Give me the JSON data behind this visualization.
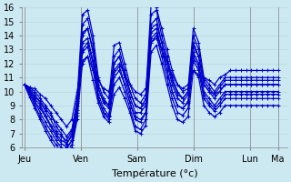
{
  "xlabel": "Température (°c)",
  "bg_color": "#cce8f0",
  "plot_bg_color": "#cce8f0",
  "line_color": "#0000cc",
  "marker": "+",
  "ylim": [
    6,
    16
  ],
  "yticks": [
    6,
    7,
    8,
    9,
    10,
    11,
    12,
    13,
    14,
    15,
    16
  ],
  "day_labels": [
    "Jeu",
    "Ven",
    "Sam",
    "Dim",
    "Lun",
    "Ma"
  ],
  "day_positions": [
    0,
    24,
    48,
    72,
    96,
    108
  ],
  "series": [
    [
      10.5,
      10.3,
      10.0,
      9.5,
      9.0,
      8.5,
      7.5,
      7.0,
      6.2,
      7.0,
      9.5,
      15.5,
      15.8,
      14.0,
      11.0,
      10.0,
      9.5,
      13.3,
      13.5,
      12.0,
      10.5,
      9.5,
      9.2,
      9.8,
      16.2,
      16.0,
      14.5,
      13.0,
      11.5,
      10.5,
      10.0,
      10.2,
      14.5,
      13.5,
      11.0,
      10.5,
      10.0,
      10.5,
      11.0,
      11.0,
      11.0,
      11.0,
      11.0,
      11.0,
      11.0,
      11.0,
      11.0,
      11.0,
      11.0
    ],
    [
      10.5,
      10.2,
      9.8,
      9.2,
      8.6,
      8.0,
      7.2,
      6.8,
      6.5,
      7.2,
      9.2,
      14.8,
      15.2,
      13.5,
      10.5,
      9.5,
      9.0,
      12.5,
      13.0,
      11.5,
      10.0,
      9.0,
      8.8,
      9.5,
      15.5,
      15.8,
      14.0,
      12.5,
      11.0,
      10.0,
      9.5,
      10.0,
      14.0,
      13.0,
      10.8,
      10.2,
      9.8,
      10.3,
      10.8,
      10.8,
      10.8,
      10.8,
      10.8,
      10.8,
      10.8,
      10.8,
      10.8,
      10.8,
      10.8
    ],
    [
      10.5,
      10.1,
      9.5,
      9.0,
      8.3,
      7.6,
      7.0,
      6.5,
      6.3,
      6.8,
      9.0,
      14.2,
      14.5,
      13.0,
      10.2,
      9.2,
      8.8,
      12.0,
      12.5,
      11.0,
      9.6,
      8.5,
      8.5,
      9.0,
      14.8,
      15.2,
      13.5,
      12.0,
      10.5,
      9.5,
      9.2,
      9.8,
      13.5,
      12.5,
      10.5,
      10.0,
      9.5,
      10.0,
      10.5,
      10.5,
      10.5,
      10.5,
      10.5,
      10.5,
      10.5,
      10.5,
      10.5,
      10.5,
      10.5
    ],
    [
      10.5,
      10.3,
      10.2,
      9.8,
      9.5,
      9.0,
      8.5,
      8.0,
      7.5,
      8.0,
      10.0,
      12.2,
      12.5,
      11.5,
      10.8,
      10.2,
      10.0,
      11.5,
      12.0,
      11.2,
      10.5,
      10.0,
      9.8,
      10.2,
      13.5,
      13.8,
      13.0,
      12.0,
      11.2,
      10.5,
      10.2,
      10.5,
      11.5,
      11.2,
      11.0,
      10.8,
      10.5,
      11.0,
      11.2,
      11.5,
      11.5,
      11.5,
      11.5,
      11.5,
      11.5,
      11.5,
      11.5,
      11.5,
      11.5
    ],
    [
      10.5,
      10.0,
      9.3,
      8.5,
      7.8,
      7.2,
      6.5,
      6.0,
      5.9,
      6.5,
      8.7,
      13.5,
      13.8,
      12.2,
      9.8,
      8.8,
      8.3,
      11.3,
      11.8,
      10.5,
      9.2,
      8.0,
      7.8,
      8.5,
      14.2,
      14.5,
      13.0,
      11.5,
      10.0,
      9.0,
      8.8,
      9.3,
      12.8,
      12.0,
      10.0,
      9.5,
      9.0,
      9.5,
      10.0,
      10.0,
      10.0,
      10.0,
      10.0,
      10.0,
      10.0,
      10.0,
      10.0,
      10.0,
      10.0
    ],
    [
      10.5,
      9.8,
      9.0,
      8.2,
      7.5,
      6.8,
      6.2,
      5.8,
      5.7,
      6.2,
      8.3,
      12.8,
      13.2,
      11.5,
      9.5,
      8.5,
      8.0,
      10.5,
      11.0,
      10.0,
      8.8,
      7.5,
      7.3,
      8.0,
      13.5,
      14.0,
      12.5,
      11.0,
      9.5,
      8.5,
      8.3,
      8.8,
      12.2,
      11.5,
      9.5,
      9.0,
      8.6,
      9.0,
      9.5,
      9.5,
      9.5,
      9.5,
      9.5,
      9.5,
      9.5,
      9.5,
      9.5,
      9.5,
      9.5
    ],
    [
      10.5,
      9.6,
      8.8,
      8.0,
      7.2,
      6.5,
      5.9,
      5.6,
      5.5,
      6.0,
      8.0,
      12.0,
      12.5,
      10.8,
      9.2,
      8.2,
      7.8,
      9.8,
      10.3,
      9.5,
      8.5,
      7.2,
      7.0,
      7.6,
      12.8,
      13.3,
      12.0,
      10.5,
      9.0,
      8.0,
      7.8,
      8.2,
      11.5,
      11.0,
      9.0,
      8.5,
      8.2,
      8.5,
      9.0,
      9.0,
      9.0,
      9.0,
      9.0,
      9.0,
      9.0,
      9.0,
      9.0,
      9.0,
      9.0
    ],
    [
      10.5,
      9.9,
      9.2,
      8.8,
      8.2,
      7.5,
      6.8,
      6.3,
      6.0,
      6.5,
      8.5,
      13.0,
      13.5,
      12.0,
      9.5,
      8.5,
      8.2,
      11.0,
      11.5,
      10.5,
      9.2,
      8.2,
      8.0,
      8.5,
      13.8,
      14.2,
      13.0,
      11.5,
      10.0,
      9.0,
      8.8,
      9.2,
      12.5,
      11.8,
      9.8,
      9.2,
      8.8,
      9.2,
      9.8,
      9.8,
      9.8,
      9.8,
      9.8,
      9.8,
      9.8,
      9.8,
      9.8,
      9.8,
      9.8
    ],
    [
      10.5,
      10.1,
      9.6,
      9.3,
      8.8,
      8.3,
      7.8,
      7.3,
      6.8,
      7.3,
      9.3,
      14.0,
      14.5,
      12.8,
      10.2,
      9.3,
      9.0,
      12.0,
      12.5,
      11.2,
      10.0,
      9.0,
      8.8,
      9.2,
      14.5,
      14.8,
      13.5,
      12.2,
      10.8,
      9.8,
      9.5,
      10.0,
      13.2,
      12.5,
      10.5,
      10.0,
      9.8,
      10.0,
      10.5,
      10.5,
      10.5,
      10.5,
      10.5,
      10.5,
      10.5,
      10.5,
      10.5,
      10.5,
      10.5
    ]
  ],
  "tick_fontsize": 7,
  "label_fontsize": 8,
  "linewidth": 0.9,
  "markersize": 2.5,
  "grid_color": "#b0d4e0",
  "spine_color": "#888888"
}
